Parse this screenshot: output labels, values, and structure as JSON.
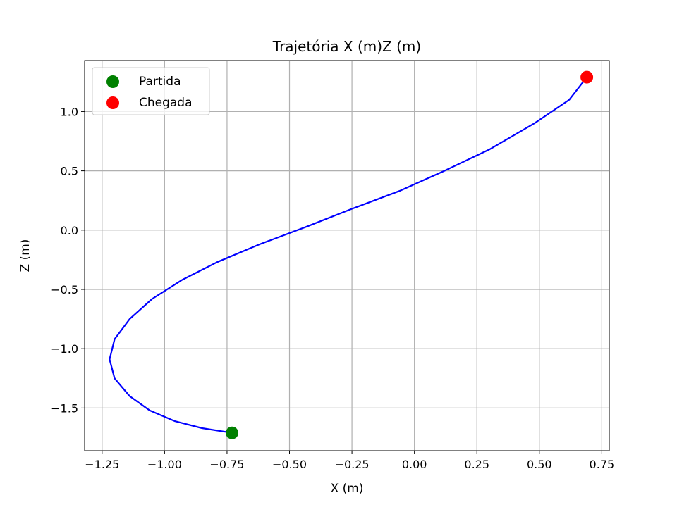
{
  "chart_data": {
    "type": "line",
    "title": "Trajetória X (m)Z (m)",
    "xlabel": "X (m)",
    "ylabel": "Z (m)",
    "xlim": [
      -1.32,
      0.78
    ],
    "ylim": [
      -1.86,
      1.43
    ],
    "xticks": [
      -1.25,
      -1.0,
      -0.75,
      -0.5,
      -0.25,
      0.0,
      0.25,
      0.5,
      0.75
    ],
    "xtick_labels": [
      "−1.25",
      "−1.00",
      "−0.75",
      "−0.50",
      "−0.25",
      "0.00",
      "0.25",
      "0.50",
      "0.75"
    ],
    "yticks": [
      -1.5,
      -1.0,
      -0.5,
      0.0,
      0.5,
      1.0
    ],
    "ytick_labels": [
      "−1.5",
      "−1.0",
      "−0.5",
      "0.0",
      "0.5",
      "1.0"
    ],
    "grid": true,
    "legend_position": "top-left",
    "series": [
      {
        "kind": "line",
        "color": "#0000ff",
        "x": [
          -0.73,
          -0.85,
          -0.96,
          -1.06,
          -1.14,
          -1.2,
          -1.22,
          -1.2,
          -1.14,
          -1.05,
          -0.93,
          -0.79,
          -0.62,
          -0.43,
          -0.25,
          -0.06,
          0.12,
          0.3,
          0.48,
          0.62,
          0.69
        ],
        "y": [
          -1.71,
          -1.67,
          -1.61,
          -1.52,
          -1.4,
          -1.25,
          -1.09,
          -0.92,
          -0.75,
          -0.58,
          -0.42,
          -0.27,
          -0.12,
          0.03,
          0.18,
          0.33,
          0.5,
          0.68,
          0.9,
          1.1,
          1.29
        ]
      },
      {
        "kind": "point",
        "name": "Partida",
        "color": "#008000",
        "x": [
          -0.73
        ],
        "y": [
          -1.71
        ]
      },
      {
        "kind": "point",
        "name": "Chegada",
        "color": "#ff0000",
        "x": [
          0.69
        ],
        "y": [
          1.29
        ]
      }
    ],
    "grid_color": "#b0b0b0",
    "axis_color": "#000000"
  }
}
